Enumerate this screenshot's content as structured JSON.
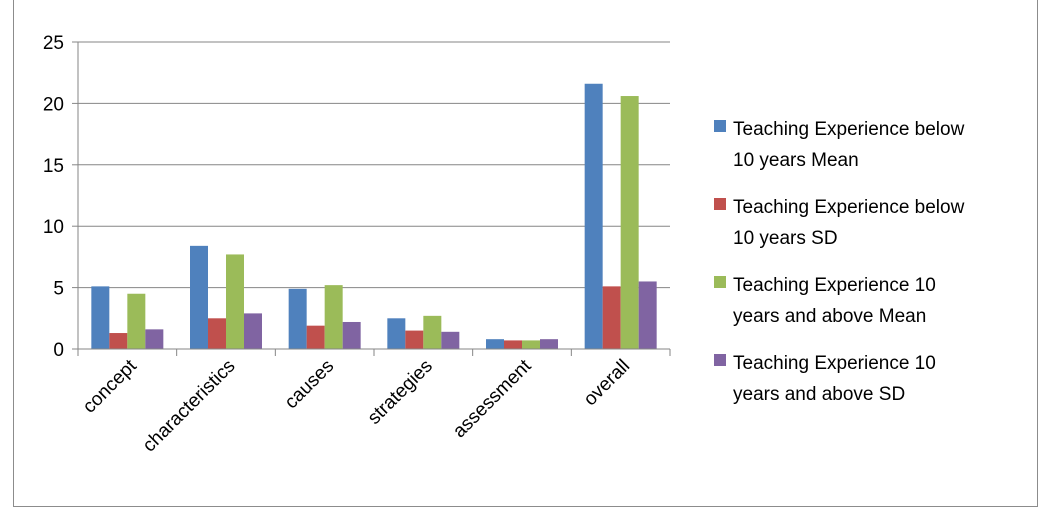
{
  "chart_data": {
    "type": "bar",
    "title": "",
    "xlabel": "",
    "ylabel": "",
    "ylim": [
      0,
      25
    ],
    "yticks": [
      0,
      5,
      10,
      15,
      20,
      25
    ],
    "grid": true,
    "legend_position": "right",
    "categories": [
      "concept",
      "characteristics",
      "causes",
      "strategies",
      "assessment",
      "overall"
    ],
    "series": [
      {
        "name": "Teaching Experience below 10 years Mean",
        "legend_lines": [
          "Teaching Experience below",
          "10 years Mean"
        ],
        "color": "#4f81bd",
        "values": [
          5.1,
          8.4,
          4.9,
          2.5,
          0.8,
          21.6
        ]
      },
      {
        "name": "Teaching Experience below 10 years SD",
        "legend_lines": [
          "Teaching Experience below",
          "10 years SD"
        ],
        "color": "#c0504d",
        "values": [
          1.3,
          2.5,
          1.9,
          1.5,
          0.7,
          5.1
        ]
      },
      {
        "name": "Teaching Experience 10 years and above Mean",
        "legend_lines": [
          "Teaching Experience 10",
          "years and above Mean"
        ],
        "color": "#9bbb59",
        "values": [
          4.5,
          7.7,
          5.2,
          2.7,
          0.7,
          20.6
        ]
      },
      {
        "name": "Teaching Experience 10 years and above SD",
        "legend_lines": [
          "Teaching Experience 10",
          "years and above SD"
        ],
        "color": "#8064a2",
        "values": [
          1.6,
          2.9,
          2.2,
          1.4,
          0.8,
          5.5
        ]
      }
    ]
  }
}
